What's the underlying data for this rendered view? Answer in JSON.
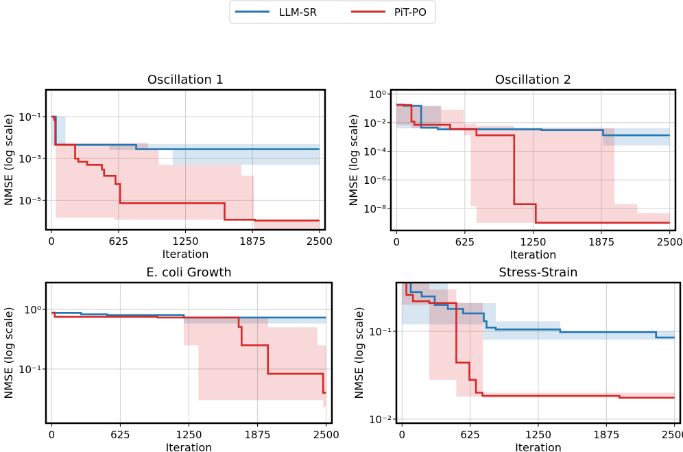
{
  "legend": [
    {
      "name": "LLM-SR",
      "color": "#1f77b4"
    },
    {
      "name": "PiT-PO",
      "color": "#d62728"
    }
  ],
  "chart_data": [
    {
      "type": "line",
      "title": "Oscillation 1",
      "xlabel": "Iteration",
      "ylabel": "NMSE (log scale)",
      "yscale": "log",
      "xlim": [
        0,
        2500
      ],
      "ylim": [
        3.98e-07,
        1.9
      ],
      "xticks": [
        0,
        625,
        1250,
        1875,
        2500
      ],
      "xtick_labels": [
        "0",
        "625",
        "1250",
        "1875",
        "2500"
      ],
      "yticks": [
        0.1,
        0.001,
        1e-05
      ],
      "ytick_labels": [
        "10⁻¹",
        "10⁻³",
        "10⁻⁵"
      ],
      "grid": true,
      "series": [
        {
          "name": "LLM-SR",
          "steps": [
            [
              0,
              0.1
            ],
            [
              40,
              0.0045
            ],
            [
              790,
              0.0028
            ],
            [
              2500,
              0.0028
            ]
          ],
          "band": [
            [
              0,
              0.004,
              0.1
            ],
            [
              130,
              0.004,
              0.005
            ],
            [
              540,
              0.0025,
              0.005
            ],
            [
              1130,
              0.0005,
              0.005
            ],
            [
              2500,
              0,
              0
            ]
          ]
        },
        {
          "name": "PiT-PO",
          "steps": [
            [
              0,
              0.1
            ],
            [
              25,
              0.07
            ],
            [
              35,
              0.0045
            ],
            [
              220,
              0.001
            ],
            [
              250,
              0.0007
            ],
            [
              333,
              0.0005
            ],
            [
              470,
              0.0003
            ],
            [
              490,
              0.00015
            ],
            [
              597,
              6e-05
            ],
            [
              640,
              7.4e-06
            ],
            [
              1615,
              1.2e-06
            ],
            [
              1897,
              1.1e-06
            ],
            [
              2500,
              1.1e-06
            ]
          ],
          "band": [
            [
              40,
              1.5e-06,
              0.0057
            ],
            [
              585,
              1.2e-06,
              0.0057
            ],
            [
              900,
              1.2e-06,
              0.003
            ],
            [
              1000,
              1.2e-06,
              0.0005
            ],
            [
              1770,
              1.2e-06,
              0.00015
            ],
            [
              1890,
              1e-07,
              1.2e-06
            ],
            [
              2500,
              0,
              0
            ]
          ]
        }
      ]
    },
    {
      "type": "line",
      "title": "Oscillation 2",
      "xlabel": "Iteration",
      "ylabel": "NMSE (log scale)",
      "yscale": "log",
      "xlim": [
        0,
        2500
      ],
      "ylim": [
        2.9e-10,
        1.95
      ],
      "xticks": [
        0,
        625,
        1250,
        1875,
        2500
      ],
      "xtick_labels": [
        "0",
        "625",
        "1250",
        "1875",
        "2500"
      ],
      "yticks": [
        1,
        0.01,
        0.0001,
        1e-06,
        1e-08
      ],
      "ytick_labels": [
        "10⁰",
        "10⁻²",
        "10⁻⁴",
        "10⁻⁶",
        "10⁻⁸"
      ],
      "grid": true,
      "series": [
        {
          "name": "LLM-SR",
          "steps": [
            [
              0,
              0.18
            ],
            [
              63,
              0.15
            ],
            [
              225,
              0.0044
            ],
            [
              376,
              0.0034
            ],
            [
              1326,
              0.003
            ],
            [
              1890,
              0.0013
            ],
            [
              2500,
              0.0013
            ]
          ],
          "band": [
            [
              0,
              0.004,
              0.15
            ],
            [
              407,
              0.0028,
              0.0045
            ],
            [
              1890,
              0.00025,
              0.004
            ],
            [
              2500,
              0,
              0
            ]
          ]
        },
        {
          "name": "PiT-PO",
          "steps": [
            [
              0,
              0.17
            ],
            [
              136,
              0.012
            ],
            [
              163,
              0.007
            ],
            [
              491,
              0.0035
            ],
            [
              731,
              0.0013
            ],
            [
              1076,
              2e-08
            ],
            [
              1274,
              1e-09
            ],
            [
              2500,
              1e-09
            ]
          ],
          "band": [
            [
              0,
              0.007,
              0.17
            ],
            [
              136,
              0.004,
              0.15
            ],
            [
              407,
              0.004,
              0.08
            ],
            [
              616,
              0.0013,
              0.008
            ],
            [
              679,
              1.5e-08,
              0.008
            ],
            [
              731,
              1e-09,
              0.006
            ],
            [
              1076,
              1e-09,
              0.004
            ],
            [
              1994,
              1e-09,
              2e-08
            ],
            [
              2203,
              1e-09,
              4.6e-09
            ],
            [
              2500,
              0,
              0
            ]
          ]
        }
      ]
    },
    {
      "type": "line",
      "title": "E. coli Growth",
      "xlabel": "Iteration",
      "ylabel": "NMSE (log scale)",
      "yscale": "log",
      "xlim": [
        0,
        2500
      ],
      "ylim": [
        0.0123,
        2.82
      ],
      "xticks": [
        0,
        625,
        1250,
        1875,
        2500
      ],
      "xtick_labels": [
        "0",
        "625",
        "1250",
        "1875",
        "2500"
      ],
      "yticks": [
        1,
        0.1
      ],
      "ytick_labels": [
        "10⁰",
        "10⁻¹"
      ],
      "grid": true,
      "series": [
        {
          "name": "LLM-SR",
          "steps": [
            [
              0,
              0.87
            ],
            [
              267,
              0.83
            ],
            [
              506,
              0.8
            ],
            [
              1204,
              0.73
            ],
            [
              2500,
              0.73
            ]
          ],
          "band": [
            [
              1204,
              0.58,
              0.74
            ],
            [
              2500,
              0,
              0
            ]
          ]
        },
        {
          "name": "PiT-PO",
          "steps": [
            [
              0,
              0.88
            ],
            [
              28,
              0.75
            ],
            [
              965,
              0.73
            ],
            [
              1703,
              0.51
            ],
            [
              1730,
              0.25
            ],
            [
              1970,
              0.083
            ],
            [
              2472,
              0.04
            ],
            [
              2500,
              0.04
            ]
          ],
          "band": [
            [
              1204,
              0.25,
              0.72
            ],
            [
              1336,
              0.03,
              0.72
            ],
            [
              1970,
              0.03,
              0.5
            ],
            [
              2420,
              0.03,
              0.25
            ],
            [
              2472,
              0.023,
              0.25
            ],
            [
              2500,
              0,
              0
            ]
          ]
        }
      ]
    },
    {
      "type": "line",
      "title": "Stress-Strain",
      "xlabel": "Iteration",
      "ylabel": "NMSE (log scale)",
      "yscale": "log",
      "xlim": [
        0,
        2500
      ],
      "ylim": [
        0.00898,
        0.359
      ],
      "xticks": [
        0,
        625,
        1250,
        1875,
        2500
      ],
      "xtick_labels": [
        "0",
        "625",
        "1250",
        "1875",
        "2500"
      ],
      "yticks": [
        0.1,
        0.01
      ],
      "ytick_labels": [
        "10⁻¹",
        "10⁻²"
      ],
      "grid": true,
      "series": [
        {
          "name": "LLM-SR",
          "steps": [
            [
              0,
              0.4
            ],
            [
              80,
              0.28
            ],
            [
              180,
              0.25
            ],
            [
              300,
              0.2
            ],
            [
              420,
              0.18
            ],
            [
              560,
              0.16
            ],
            [
              750,
              0.13
            ],
            [
              775,
              0.11
            ],
            [
              860,
              0.105
            ],
            [
              1450,
              0.098
            ],
            [
              2330,
              0.085
            ],
            [
              2500,
              0.085
            ]
          ],
          "band": [
            [
              0,
              0.12,
              0.4
            ],
            [
              420,
              0.12,
              0.21
            ],
            [
              740,
              0.08,
              0.21
            ],
            [
              860,
              0.08,
              0.13
            ],
            [
              1450,
              0.08,
              0.1
            ],
            [
              2500,
              0,
              0
            ]
          ]
        },
        {
          "name": "PiT-PO",
          "steps": [
            [
              0,
              0.4
            ],
            [
              40,
              0.26
            ],
            [
              100,
              0.22
            ],
            [
              250,
              0.21
            ],
            [
              498,
              0.044
            ],
            [
              618,
              0.028
            ],
            [
              678,
              0.02
            ],
            [
              738,
              0.0184
            ],
            [
              1994,
              0.0175
            ],
            [
              2500,
              0.0175
            ]
          ],
          "band": [
            [
              0,
              0.2,
              0.4
            ],
            [
              250,
              0.028,
              0.3
            ],
            [
              498,
              0.018,
              0.21
            ],
            [
              740,
              0.0175,
              0.02
            ],
            [
              2500,
              0,
              0
            ]
          ]
        }
      ]
    }
  ]
}
